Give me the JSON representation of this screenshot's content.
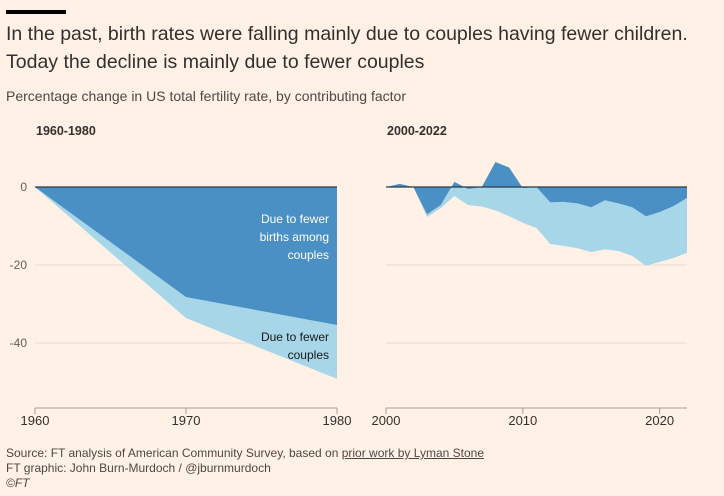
{
  "header": {
    "title": "In the past, birth rates were falling mainly due to couples having fewer children. Today the decline is mainly due to fewer couples",
    "subtitle": "Percentage change in US total fertility rate, by contributing factor"
  },
  "colors": {
    "background": "#fff1e5",
    "fewer_births_among_couples": "#4a90c4",
    "fewer_couples": "#a6d6e8",
    "zero_line": "#2e3b4a",
    "gridline": "#e8dcd2",
    "axis": "#a89f98"
  },
  "chart_data": [
    {
      "type": "area",
      "panel_title": "1960-1980",
      "x": [
        1960,
        1970,
        1980
      ],
      "series": [
        {
          "name": "Due to fewer births among couples",
          "values": [
            0,
            -28.2,
            -35.4
          ]
        },
        {
          "name": "Due to fewer couples",
          "cumulative_total": [
            0,
            -33.6,
            -49.2
          ]
        }
      ],
      "ylim": [
        -55,
        0
      ],
      "yticks": [
        0,
        -20,
        -40
      ],
      "ytick_labels": [
        "0",
        "-20",
        "-40"
      ],
      "xticks": [
        1960,
        1970,
        1980
      ],
      "xtick_labels": [
        "1960",
        "1970",
        "1980"
      ],
      "annotations": [
        {
          "text_lines": [
            "Due to fewer",
            "births among",
            "couples"
          ],
          "series": "Due to fewer births among couples"
        },
        {
          "text_lines": [
            "Due to fewer",
            "couples"
          ],
          "series": "Due to fewer couples"
        }
      ],
      "grid": true
    },
    {
      "type": "area",
      "panel_title": "2000-2022",
      "x": [
        2000,
        2001,
        2002,
        2003,
        2004,
        2005,
        2006,
        2007,
        2008,
        2009,
        2010,
        2011,
        2012,
        2013,
        2014,
        2015,
        2016,
        2017,
        2018,
        2019,
        2020,
        2021,
        2022
      ],
      "series": [
        {
          "name": "Due to fewer births among couples",
          "values": [
            0,
            0.8,
            0,
            -7,
            -4.6,
            1.3,
            -0.5,
            0,
            6.4,
            5,
            -0.3,
            0,
            -3.9,
            -3.8,
            -4.2,
            -5.2,
            -3.4,
            -4.2,
            -5.2,
            -7.5,
            -6.4,
            -4.9,
            -2.8
          ]
        },
        {
          "name": "Due to fewer couples",
          "cumulative_total": [
            0,
            0,
            0,
            -7.7,
            -5.4,
            -2.3,
            -4.6,
            -5,
            -6,
            -7.5,
            -9.2,
            -10.5,
            -14.6,
            -15.1,
            -15.7,
            -16.7,
            -16.0,
            -16.4,
            -17.7,
            -20.2,
            -19.2,
            -18.2,
            -16.9
          ]
        }
      ],
      "ylim": [
        -55,
        0
      ],
      "yticks": [
        0,
        -20,
        -40
      ],
      "xticks": [
        2000,
        2010,
        2020
      ],
      "xtick_labels": [
        "2000",
        "2010",
        "2020"
      ],
      "grid": true
    }
  ],
  "footer": {
    "source_prefix": "Source: FT analysis of American Community Survey, based on ",
    "source_link": "prior work by Lyman Stone",
    "credit": "FT graphic: John Burn-Murdoch / @jburnmurdoch",
    "copyright": "©FT"
  }
}
